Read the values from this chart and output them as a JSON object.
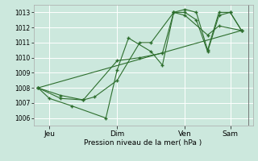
{
  "bg_color": "#cce8dd",
  "grid_color": "#ffffff",
  "line_color": "#2d6e2d",
  "xlabel": "Pression niveau de la mer( hPa )",
  "xtick_labels": [
    "Jeu",
    "Dim",
    "Ven",
    "Sam"
  ],
  "xtick_positions": [
    0.5,
    3.5,
    6.5,
    8.5
  ],
  "ylim": [
    1005.5,
    1013.5
  ],
  "yticks": [
    1006,
    1007,
    1008,
    1009,
    1010,
    1011,
    1012,
    1013
  ],
  "series1_x": [
    0.0,
    0.5,
    1.5,
    3.0,
    3.5,
    4.0,
    5.0,
    5.5,
    6.0,
    6.5,
    7.0,
    7.5,
    8.0,
    8.5,
    9.0
  ],
  "series1_y": [
    1008.0,
    1007.3,
    1006.8,
    1006.0,
    1009.2,
    1011.3,
    1010.4,
    1009.5,
    1013.0,
    1013.2,
    1013.0,
    1010.5,
    1013.0,
    1013.0,
    1011.8
  ],
  "series2_x": [
    0.0,
    1.0,
    2.0,
    3.5,
    4.5,
    5.5,
    6.0,
    6.5,
    7.5,
    8.0,
    9.0
  ],
  "series2_y": [
    1008.0,
    1007.3,
    1007.2,
    1009.8,
    1010.0,
    1010.3,
    1013.0,
    1012.8,
    1011.5,
    1012.1,
    1011.8
  ],
  "series3_x": [
    0.0,
    1.0,
    2.0,
    2.5,
    3.5,
    4.5,
    5.0,
    6.0,
    6.5,
    7.0,
    7.5,
    8.0,
    8.5,
    9.0
  ],
  "series3_y": [
    1008.0,
    1007.5,
    1007.2,
    1007.4,
    1008.5,
    1011.0,
    1011.0,
    1013.0,
    1013.0,
    1012.5,
    1010.4,
    1012.8,
    1013.0,
    1011.8
  ],
  "trend_x": [
    0.0,
    9.0
  ],
  "trend_y": [
    1008.0,
    1011.8
  ],
  "xlim": [
    -0.2,
    9.5
  ],
  "figsize": [
    3.2,
    2.0
  ],
  "dpi": 100
}
